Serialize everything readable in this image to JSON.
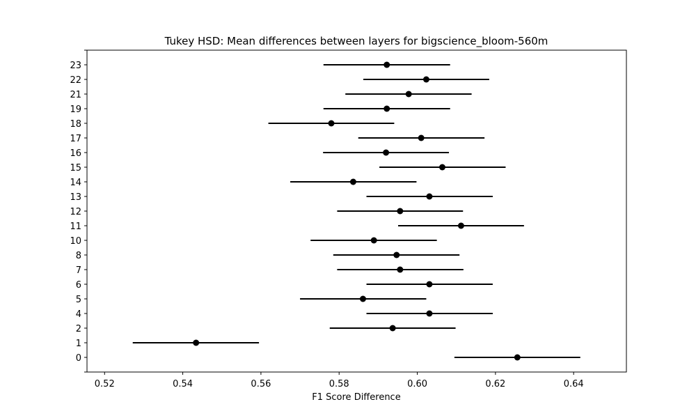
{
  "chart_data": {
    "type": "errorbar",
    "title": "Tukey HSD: Mean differences between layers for bigscience_bloom-560m",
    "xlabel": "F1 Score Difference",
    "ylabel": "",
    "xlim": [
      0.5155,
      0.6535
    ],
    "xticks": [
      0.52,
      0.54,
      0.56,
      0.58,
      0.6,
      0.62,
      0.64
    ],
    "xtick_labels": [
      "0.52",
      "0.54",
      "0.56",
      "0.58",
      "0.60",
      "0.62",
      "0.64"
    ],
    "grid": false,
    "marker_color": "#000000",
    "points": [
      {
        "layer": "23",
        "mean": 0.5922,
        "lower": 0.576,
        "upper": 0.6084
      },
      {
        "layer": "22",
        "mean": 0.6023,
        "lower": 0.5862,
        "upper": 0.6184
      },
      {
        "layer": "21",
        "mean": 0.5978,
        "lower": 0.5816,
        "upper": 0.6139
      },
      {
        "layer": "19",
        "mean": 0.5922,
        "lower": 0.576,
        "upper": 0.6084
      },
      {
        "layer": "18",
        "mean": 0.578,
        "lower": 0.5619,
        "upper": 0.5941
      },
      {
        "layer": "17",
        "mean": 0.601,
        "lower": 0.5849,
        "upper": 0.6172
      },
      {
        "layer": "16",
        "mean": 0.592,
        "lower": 0.5759,
        "upper": 0.6081
      },
      {
        "layer": "15",
        "mean": 0.6064,
        "lower": 0.5903,
        "upper": 0.6226
      },
      {
        "layer": "14",
        "mean": 0.5836,
        "lower": 0.5675,
        "upper": 0.5998
      },
      {
        "layer": "13",
        "mean": 0.6031,
        "lower": 0.587,
        "upper": 0.6193
      },
      {
        "layer": "12",
        "mean": 0.5956,
        "lower": 0.5795,
        "upper": 0.6117
      },
      {
        "layer": "11",
        "mean": 0.6112,
        "lower": 0.5951,
        "upper": 0.6273
      },
      {
        "layer": "10",
        "mean": 0.5889,
        "lower": 0.5727,
        "upper": 0.605
      },
      {
        "layer": "8",
        "mean": 0.5947,
        "lower": 0.5785,
        "upper": 0.6108
      },
      {
        "layer": "7",
        "mean": 0.5956,
        "lower": 0.5795,
        "upper": 0.6118
      },
      {
        "layer": "6",
        "mean": 0.6031,
        "lower": 0.587,
        "upper": 0.6193
      },
      {
        "layer": "5",
        "mean": 0.5861,
        "lower": 0.57,
        "upper": 0.6023
      },
      {
        "layer": "4",
        "mean": 0.6031,
        "lower": 0.587,
        "upper": 0.6193
      },
      {
        "layer": "2",
        "mean": 0.5937,
        "lower": 0.5776,
        "upper": 0.6098
      },
      {
        "layer": "1",
        "mean": 0.5434,
        "lower": 0.5272,
        "upper": 0.5595
      },
      {
        "layer": "0",
        "mean": 0.6256,
        "lower": 0.6095,
        "upper": 0.6417
      }
    ]
  }
}
